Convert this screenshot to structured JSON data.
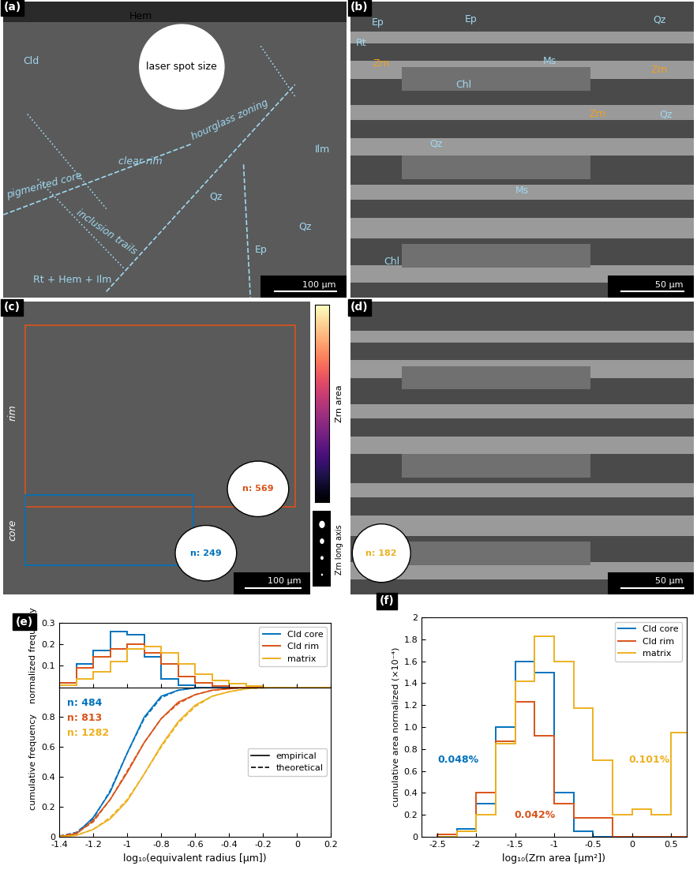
{
  "images": [
    {
      "panel": "(a)",
      "labels": [
        "Hem",
        "Cld",
        "laser spot size",
        "clear rim",
        "hourglass zoning",
        "pigmented core",
        "inclusion trails",
        "Rt + Hem + Ilm",
        "Ilm",
        "Qz",
        "Qz",
        "Ep"
      ],
      "scale_bar": "100 µm"
    },
    {
      "panel": "(b)",
      "labels": [
        "Ep",
        "Ep",
        "Qz",
        "Rt",
        "Zrn",
        "Zrn",
        "Zrn",
        "Ms",
        "Chl",
        "Qz",
        "Qz",
        "Ms",
        "Chl"
      ],
      "scale_bar": "50 µm"
    },
    {
      "panel": "(c)",
      "labels": [
        "rim",
        "core"
      ],
      "rose_counts": [
        "n: 569",
        "n: 249"
      ],
      "scale_bar": "100 µm",
      "colorbar_label": "Zrn area",
      "size_legend_label": "Zrn long axis"
    },
    {
      "panel": "(d)",
      "labels": [],
      "rose_counts": [
        "n: 182"
      ],
      "scale_bar": "50 µm"
    }
  ],
  "chart_data": [
    {
      "type": "histogram",
      "panel_label": "(e)",
      "ylabel": "normalized frequency",
      "bins": [
        -1.4,
        -1.3,
        -1.2,
        -1.1,
        -1.0,
        -0.9,
        -0.8,
        -0.7,
        -0.6,
        -0.5,
        -0.4,
        -0.3,
        -0.2,
        -0.1,
        0,
        0.1,
        0.2
      ],
      "series": [
        {
          "name": "Cld core",
          "color": "#0072BD",
          "values": [
            0.02,
            0.11,
            0.17,
            0.26,
            0.245,
            0.14,
            0.04,
            0.01,
            0,
            0,
            0,
            0,
            0,
            0,
            0,
            0
          ]
        },
        {
          "name": "Cld rim",
          "color": "#D95319",
          "values": [
            0.02,
            0.09,
            0.14,
            0.18,
            0.2,
            0.16,
            0.11,
            0.05,
            0.02,
            0.005,
            0,
            0,
            0,
            0,
            0,
            0
          ]
        },
        {
          "name": "matrix",
          "color": "#EDB120",
          "values": [
            0.01,
            0.04,
            0.07,
            0.12,
            0.18,
            0.19,
            0.16,
            0.11,
            0.06,
            0.03,
            0.015,
            0.005,
            0,
            0,
            0,
            0
          ]
        }
      ],
      "xlim": [
        -1.4,
        0.2
      ],
      "xticks": [
        -1.4,
        -1.2,
        -1,
        -0.8,
        -0.6,
        -0.4,
        -0.2,
        0,
        0.2
      ],
      "ylim": [
        0,
        0.3
      ],
      "yticks": [
        0.1,
        0.2,
        0.3
      ],
      "legend": "upper right",
      "tick_labels": "y"
    },
    {
      "type": "line",
      "xlabel": "log₁₀(equivalent radius [µm])",
      "ylabel": "cumulative frequency",
      "x": [
        -1.4,
        -1.3,
        -1.2,
        -1.1,
        -1.0,
        -0.9,
        -0.8,
        -0.7,
        -0.6,
        -0.5,
        -0.4,
        -0.3,
        -0.2,
        -0.1,
        0,
        0.1,
        0.2
      ],
      "series": [
        {
          "name": "empirical",
          "color": "#0072BD",
          "line_style": "solid",
          "values": [
            0,
            0.02,
            0.13,
            0.3,
            0.56,
            0.8,
            0.94,
            0.98,
            0.995,
            1,
            1,
            1,
            1,
            1,
            1,
            1,
            1
          ]
        },
        {
          "name": "theoretical",
          "color": "#0072BD",
          "line_style": "dashed",
          "values": [
            0.005,
            0.03,
            0.12,
            0.31,
            0.56,
            0.79,
            0.93,
            0.98,
            0.995,
            1,
            1,
            1,
            1,
            1,
            1,
            1,
            1
          ]
        },
        {
          "name": "empirical",
          "color": "#D95319",
          "line_style": "solid",
          "values": [
            0,
            0.02,
            0.11,
            0.25,
            0.43,
            0.63,
            0.79,
            0.9,
            0.95,
            0.98,
            0.99,
            1,
            1,
            1,
            1,
            1,
            1
          ]
        },
        {
          "name": "theoretical",
          "color": "#D95319",
          "line_style": "dashed",
          "values": [
            0.005,
            0.025,
            0.1,
            0.25,
            0.44,
            0.63,
            0.79,
            0.89,
            0.95,
            0.98,
            0.99,
            1,
            1,
            1,
            1,
            1,
            1
          ]
        },
        {
          "name": "empirical",
          "color": "#EDB120",
          "line_style": "solid",
          "values": [
            0,
            0.01,
            0.05,
            0.12,
            0.24,
            0.42,
            0.61,
            0.77,
            0.88,
            0.94,
            0.97,
            0.99,
            1,
            1,
            1,
            1,
            1
          ]
        },
        {
          "name": "theoretical",
          "color": "#EDB120",
          "line_style": "dashed",
          "values": [
            0.002,
            0.01,
            0.05,
            0.13,
            0.25,
            0.42,
            0.6,
            0.76,
            0.87,
            0.94,
            0.97,
            0.99,
            0.995,
            1,
            1,
            1,
            1
          ]
        }
      ],
      "annotations": [
        {
          "text": "n: 484",
          "color": "#0072BD"
        },
        {
          "text": "n: 813",
          "color": "#D95319"
        },
        {
          "text": "n: 1282",
          "color": "#EDB120"
        }
      ],
      "xlim": [
        -1.4,
        0.2
      ],
      "xticks": [
        -1.4,
        -1.2,
        -1,
        -0.8,
        -0.6,
        -0.4,
        -0.2,
        0,
        0.2
      ],
      "ylim": [
        0,
        1
      ],
      "yticks": [
        0,
        0.2,
        0.4,
        0.6,
        0.8
      ],
      "legend": "center right"
    },
    {
      "type": "histogram",
      "panel_label": "(f)",
      "xlabel": "log₁₀(Zrn area [µm²])",
      "ylabel": "cumulative area normalized (×10⁻⁴)",
      "bins": [
        -2.5,
        -2.25,
        -2.0,
        -1.75,
        -1.5,
        -1.25,
        -1.0,
        -0.75,
        -0.5,
        -0.25,
        0,
        0.25,
        0.5,
        0.75
      ],
      "series": [
        {
          "name": "Cld core",
          "color": "#0072BD",
          "values": [
            0,
            0.07,
            0.3,
            1.0,
            1.6,
            1.5,
            0.4,
            0.05,
            0,
            0,
            0,
            0,
            0
          ]
        },
        {
          "name": "Cld rim",
          "color": "#D95319",
          "values": [
            0.02,
            0.05,
            0.4,
            0.87,
            1.23,
            0.92,
            0.3,
            0.17,
            0.17,
            0,
            0,
            0,
            0
          ]
        },
        {
          "name": "matrix",
          "color": "#EDB120",
          "values": [
            0,
            0.05,
            0.2,
            0.85,
            1.42,
            1.83,
            1.6,
            1.17,
            0.7,
            0.2,
            0.25,
            0.2,
            0.95
          ]
        }
      ],
      "annotations": [
        {
          "text": "0.048%",
          "color": "#0072BD"
        },
        {
          "text": "0.042%",
          "color": "#D95319"
        },
        {
          "text": "0.101%",
          "color": "#EDB120"
        }
      ],
      "xlim": [
        -2.7,
        0.7
      ],
      "xticks": [
        -2.5,
        -2,
        -1.5,
        -1,
        -0.5,
        0,
        0.5
      ],
      "ylim": [
        0,
        2
      ],
      "yticks": [
        0,
        0.2,
        0.4,
        0.6,
        0.8,
        1.0,
        1.2,
        1.4,
        1.6,
        1.8,
        2
      ],
      "legend": "upper right"
    }
  ]
}
